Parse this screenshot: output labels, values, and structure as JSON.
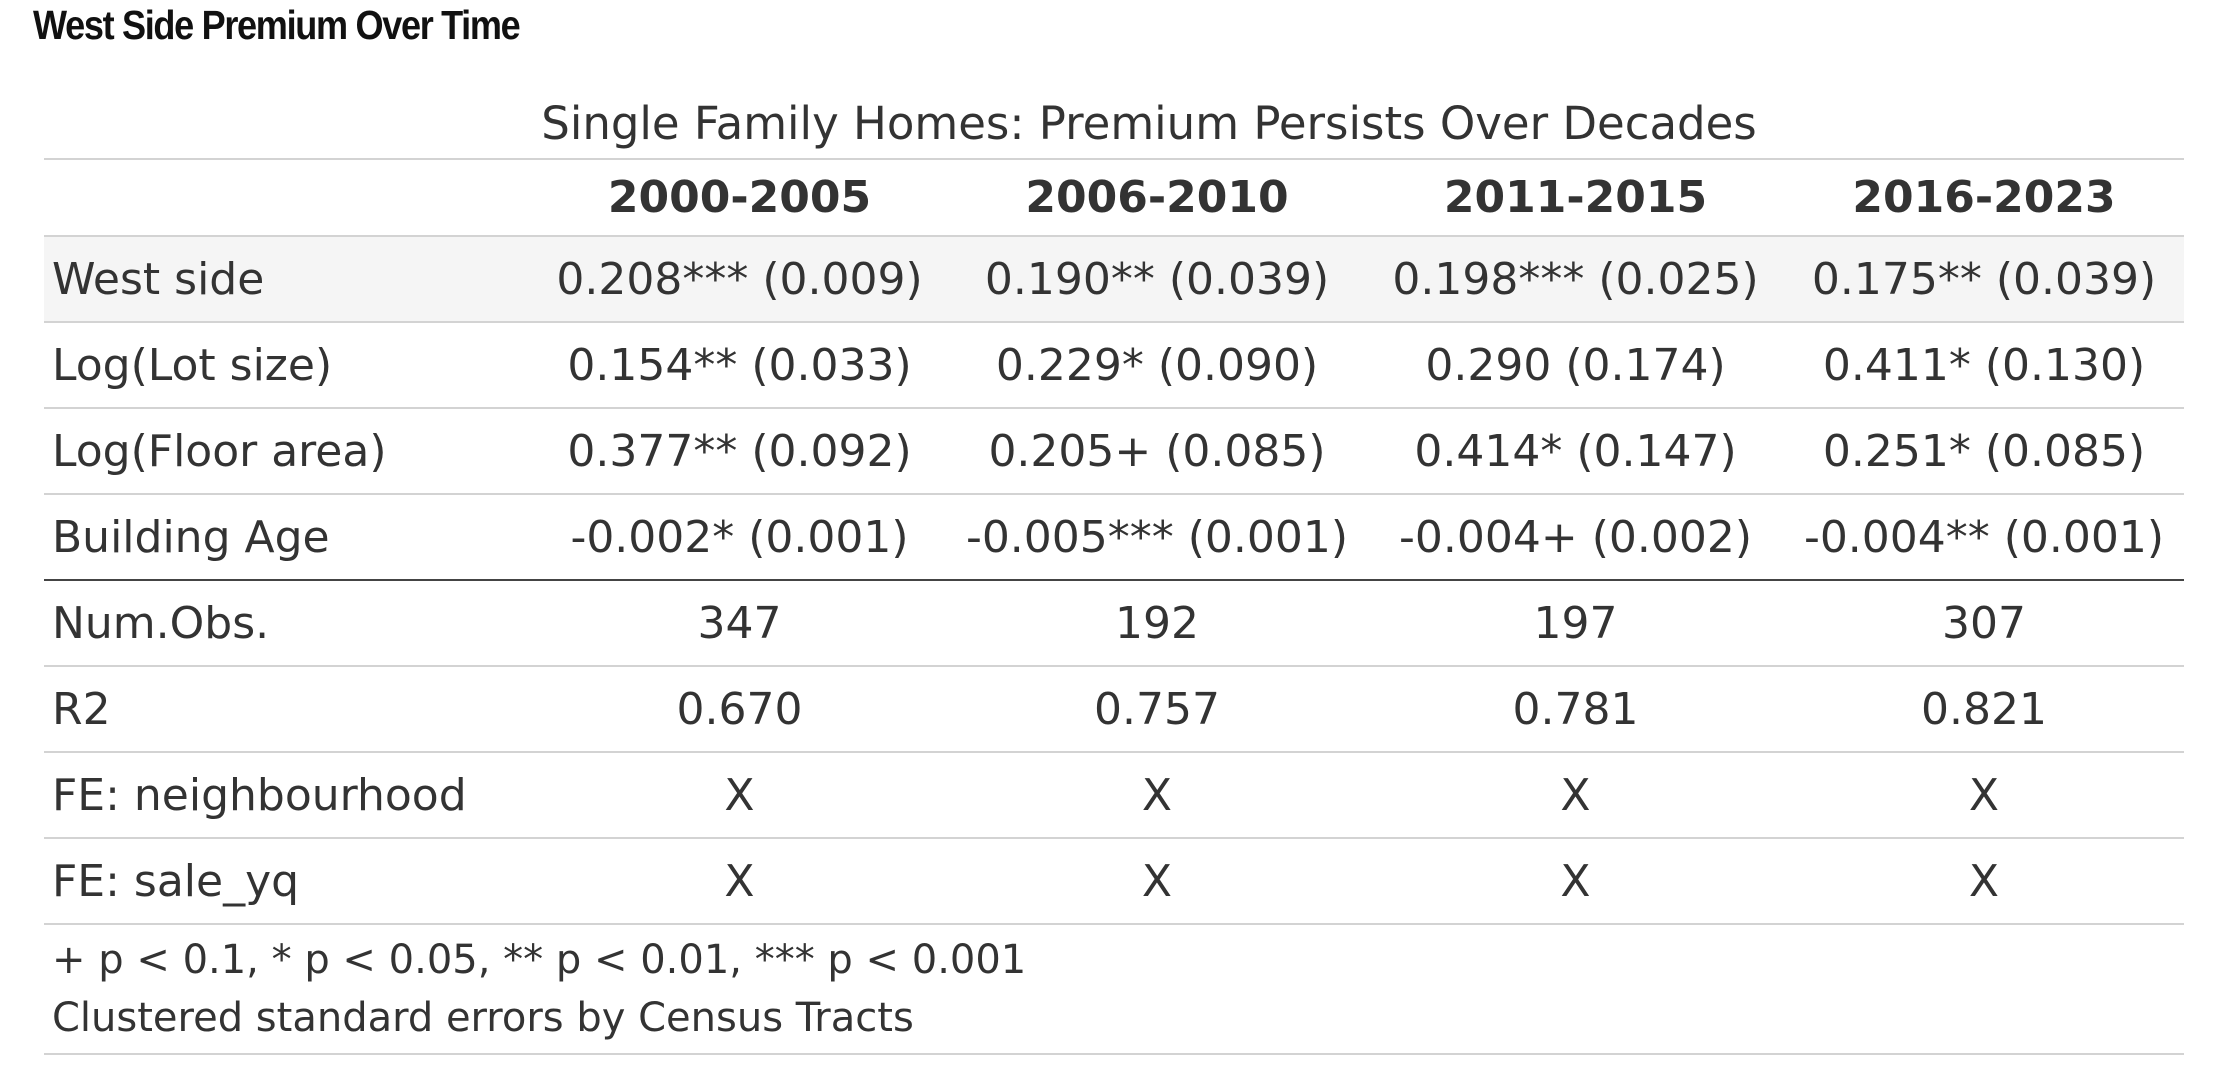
{
  "page": {
    "heading": "West Side Premium Over Time"
  },
  "table": {
    "caption": "Single Family Homes: Premium Persists Over Decades",
    "columns": [
      "",
      "2000-2005",
      "2006-2010",
      "2011-2015",
      "2016-2023"
    ],
    "rows": [
      {
        "label": "West side",
        "cells": [
          "0.208*** (0.009)",
          "0.190** (0.039)",
          "0.198*** (0.025)",
          "0.175** (0.039)"
        ]
      },
      {
        "label": "Log(Lot size)",
        "cells": [
          "0.154** (0.033)",
          "0.229* (0.090)",
          "0.290 (0.174)",
          "0.411* (0.130)"
        ]
      },
      {
        "label": "Log(Floor area)",
        "cells": [
          "0.377** (0.092)",
          "0.205+ (0.085)",
          "0.414* (0.147)",
          "0.251* (0.085)"
        ]
      },
      {
        "label": "Building Age",
        "cells": [
          "-0.002* (0.001)",
          "-0.005*** (0.001)",
          "-0.004+ (0.002)",
          "-0.004** (0.001)"
        ]
      },
      {
        "label": "Num.Obs.",
        "cells": [
          "347",
          "192",
          "197",
          "307"
        ]
      },
      {
        "label": "R2",
        "cells": [
          "0.670",
          "0.757",
          "0.781",
          "0.821"
        ]
      },
      {
        "label": "FE: neighbourhood",
        "cells": [
          "X",
          "X",
          "X",
          "X"
        ]
      },
      {
        "label": "FE: sale_yq",
        "cells": [
          "X",
          "X",
          "X",
          "X"
        ]
      }
    ],
    "notes": [
      "+ p < 0.1, * p < 0.05, ** p < 0.01, *** p < 0.001",
      "Clustered standard errors by Census Tracts"
    ]
  },
  "colors": {
    "text": "#333333",
    "shaded_row": "#f5f5f5",
    "rule_light": "#d3d3d3",
    "rule_dark": "#444444"
  },
  "chart_data": {
    "type": "table",
    "title": "Single Family Homes: Premium Persists Over Decades",
    "columns": [
      "",
      "2000-2005",
      "2006-2010",
      "2011-2015",
      "2016-2023"
    ],
    "rows": [
      [
        "West side",
        "0.208*** (0.009)",
        "0.190** (0.039)",
        "0.198*** (0.025)",
        "0.175** (0.039)"
      ],
      [
        "Log(Lot size)",
        "0.154** (0.033)",
        "0.229* (0.090)",
        "0.290 (0.174)",
        "0.411* (0.130)"
      ],
      [
        "Log(Floor area)",
        "0.377** (0.092)",
        "0.205+ (0.085)",
        "0.414* (0.147)",
        "0.251* (0.085)"
      ],
      [
        "Building Age",
        "-0.002* (0.001)",
        "-0.005*** (0.001)",
        "-0.004+ (0.002)",
        "-0.004** (0.001)"
      ],
      [
        "Num.Obs.",
        "347",
        "192",
        "197",
        "307"
      ],
      [
        "R2",
        "0.670",
        "0.757",
        "0.781",
        "0.821"
      ],
      [
        "FE: neighbourhood",
        "X",
        "X",
        "X",
        "X"
      ],
      [
        "FE: sale_yq",
        "X",
        "X",
        "X",
        "X"
      ]
    ]
  }
}
